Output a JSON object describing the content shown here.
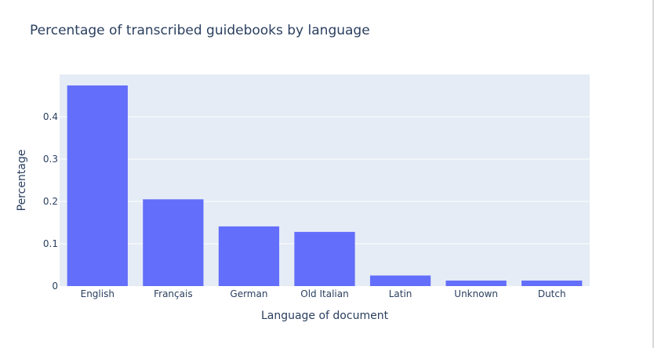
{
  "chart_data": {
    "type": "bar",
    "title": "Percentage of transcribed guidebooks by language",
    "xlabel": "Language of document",
    "ylabel": "Percentage",
    "categories": [
      "English",
      "Français",
      "German",
      "Old Italian",
      "Latin",
      "Unknown",
      "Dutch"
    ],
    "values": [
      0.474,
      0.205,
      0.141,
      0.128,
      0.025,
      0.013,
      0.013
    ],
    "ylim": [
      0,
      0.5
    ],
    "yticks": [
      0,
      0.1,
      0.2,
      0.3,
      0.4
    ],
    "ytick_labels": [
      "0",
      "0.1",
      "0.2",
      "0.3",
      "0.4"
    ],
    "grid": true,
    "colors": {
      "bar": "#636efa",
      "plot_bg": "#e5ecf6",
      "grid": "#ffffff",
      "text": "#2a3f5f"
    }
  }
}
